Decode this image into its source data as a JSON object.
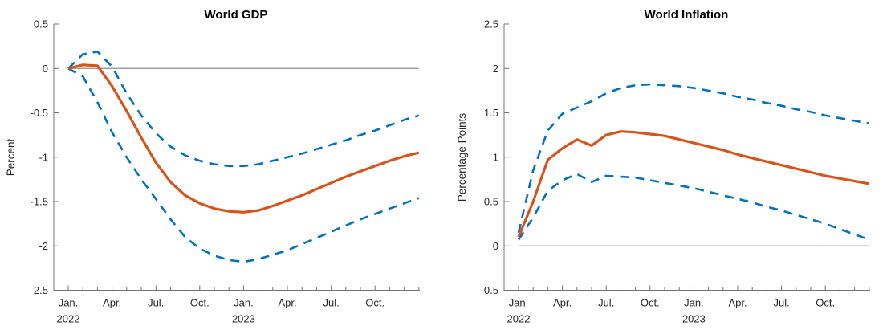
{
  "figure": {
    "background": "#ffffff"
  },
  "colors": {
    "central_line": "#d95319",
    "band_line": "#0072bd",
    "zero_line": "#8c8c8c",
    "axis": "#737373",
    "text": "#262626"
  },
  "chart_data": [
    {
      "type": "line",
      "title": "World GDP",
      "ylabel": "Percent",
      "x_unit": "month",
      "n_months": 25,
      "x_range_note": "monthly ticks from Jan 2022 through Jan 2024, quarterly labels",
      "x_tick_labels": [
        {
          "month": 0,
          "label": "Jan.",
          "year": "2022"
        },
        {
          "month": 3,
          "label": "Apr."
        },
        {
          "month": 6,
          "label": "Jul."
        },
        {
          "month": 9,
          "label": "Oct."
        },
        {
          "month": 12,
          "label": "Jan.",
          "year": "2023"
        },
        {
          "month": 15,
          "label": "Apr."
        },
        {
          "month": 18,
          "label": "Jul."
        },
        {
          "month": 21,
          "label": "Oct."
        }
      ],
      "ylim": [
        -2.5,
        0.5
      ],
      "yticks": [
        {
          "value": 0.5,
          "label": "0.5"
        },
        {
          "value": 0,
          "label": "0"
        },
        {
          "value": -0.5,
          "label": "-0.5"
        },
        {
          "value": -1,
          "label": "-1"
        },
        {
          "value": -1.5,
          "label": "-1.5"
        },
        {
          "value": -2,
          "label": "-2"
        },
        {
          "value": -2.5,
          "label": "-2.5"
        }
      ],
      "zero_line": true,
      "grid": false,
      "legend": false,
      "series": [
        {
          "name": "central-estimate",
          "style": "solid",
          "color": "#d95319",
          "values": [
            0.0,
            0.04,
            0.03,
            -0.2,
            -0.48,
            -0.78,
            -1.06,
            -1.28,
            -1.43,
            -1.52,
            -1.58,
            -1.61,
            -1.62,
            -1.6,
            -1.55,
            -1.49,
            -1.43,
            -1.36,
            -1.29,
            -1.22,
            -1.16,
            -1.1,
            -1.04,
            -0.99,
            -0.95
          ]
        },
        {
          "name": "upper-band",
          "style": "dashed",
          "color": "#0072bd",
          "values": [
            0.0,
            0.16,
            0.19,
            0.02,
            -0.28,
            -0.53,
            -0.73,
            -0.88,
            -0.98,
            -1.04,
            -1.08,
            -1.1,
            -1.1,
            -1.08,
            -1.04,
            -1.0,
            -0.96,
            -0.91,
            -0.86,
            -0.81,
            -0.75,
            -0.7,
            -0.64,
            -0.58,
            -0.53
          ]
        },
        {
          "name": "lower-band",
          "style": "dashed",
          "color": "#0072bd",
          "values": [
            0.0,
            -0.09,
            -0.38,
            -0.72,
            -1.0,
            -1.25,
            -1.47,
            -1.7,
            -1.9,
            -2.03,
            -2.11,
            -2.16,
            -2.18,
            -2.15,
            -2.1,
            -2.05,
            -1.98,
            -1.91,
            -1.84,
            -1.77,
            -1.7,
            -1.64,
            -1.58,
            -1.52,
            -1.46
          ]
        }
      ]
    },
    {
      "type": "line",
      "title": "World Inflation",
      "ylabel": "Percentage Points",
      "x_unit": "month",
      "n_months": 25,
      "x_range_note": "monthly ticks from Jan 2022 through Jan 2024, quarterly labels",
      "x_tick_labels": [
        {
          "month": 0,
          "label": "Jan.",
          "year": "2022"
        },
        {
          "month": 3,
          "label": "Apr."
        },
        {
          "month": 6,
          "label": "Jul."
        },
        {
          "month": 9,
          "label": "Oct."
        },
        {
          "month": 12,
          "label": "Jan.",
          "year": "2023"
        },
        {
          "month": 15,
          "label": "Apr."
        },
        {
          "month": 18,
          "label": "Jul."
        },
        {
          "month": 21,
          "label": "Oct."
        }
      ],
      "ylim": [
        -0.5,
        2.5
      ],
      "yticks": [
        {
          "value": 2.5,
          "label": "2.5"
        },
        {
          "value": 2,
          "label": "2"
        },
        {
          "value": 1.5,
          "label": "1.5"
        },
        {
          "value": 1,
          "label": "1"
        },
        {
          "value": 0.5,
          "label": "0.5"
        },
        {
          "value": 0,
          "label": "0"
        },
        {
          "value": -0.5,
          "label": "-0.5"
        }
      ],
      "zero_line": true,
      "grid": false,
      "legend": false,
      "series": [
        {
          "name": "central-estimate",
          "style": "solid",
          "color": "#d95319",
          "values": [
            0.1,
            0.5,
            0.97,
            1.1,
            1.2,
            1.13,
            1.25,
            1.29,
            1.28,
            1.26,
            1.24,
            1.2,
            1.16,
            1.12,
            1.08,
            1.03,
            0.99,
            0.95,
            0.91,
            0.87,
            0.83,
            0.79,
            0.76,
            0.73,
            0.7
          ]
        },
        {
          "name": "upper-band",
          "style": "dashed",
          "color": "#0072bd",
          "values": [
            0.15,
            0.85,
            1.3,
            1.49,
            1.56,
            1.63,
            1.72,
            1.78,
            1.81,
            1.82,
            1.81,
            1.8,
            1.78,
            1.75,
            1.72,
            1.68,
            1.65,
            1.61,
            1.58,
            1.54,
            1.51,
            1.47,
            1.44,
            1.41,
            1.38
          ]
        },
        {
          "name": "lower-band",
          "style": "dashed",
          "color": "#0072bd",
          "values": [
            0.07,
            0.32,
            0.62,
            0.74,
            0.81,
            0.72,
            0.79,
            0.78,
            0.77,
            0.74,
            0.71,
            0.68,
            0.65,
            0.61,
            0.57,
            0.53,
            0.49,
            0.44,
            0.4,
            0.35,
            0.3,
            0.25,
            0.19,
            0.13,
            0.07
          ]
        }
      ]
    }
  ]
}
